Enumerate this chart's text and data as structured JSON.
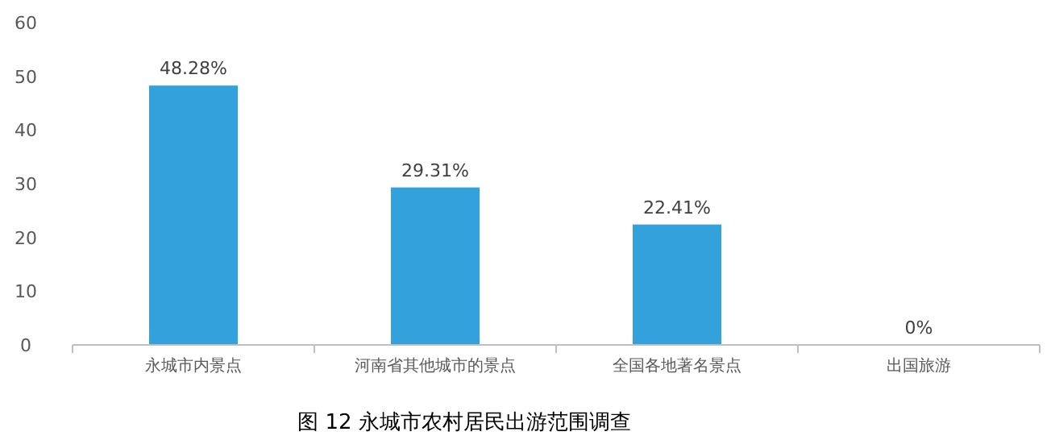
{
  "chart_data": {
    "type": "bar",
    "title": "图 12 永城市农村居民出游范围调查",
    "categories": [
      "永城市内景点",
      "河南省其他城市的景点",
      "全国各地著名景点",
      "出国旅游"
    ],
    "values": [
      48.28,
      29.31,
      22.41,
      0
    ],
    "value_labels": [
      "48.28%",
      "29.31%",
      "22.41%",
      "0%"
    ],
    "color": "#33a2dc",
    "ylim": [
      0,
      60
    ],
    "yticks": [
      0,
      10,
      20,
      30,
      40,
      50,
      60
    ],
    "grid": false
  }
}
